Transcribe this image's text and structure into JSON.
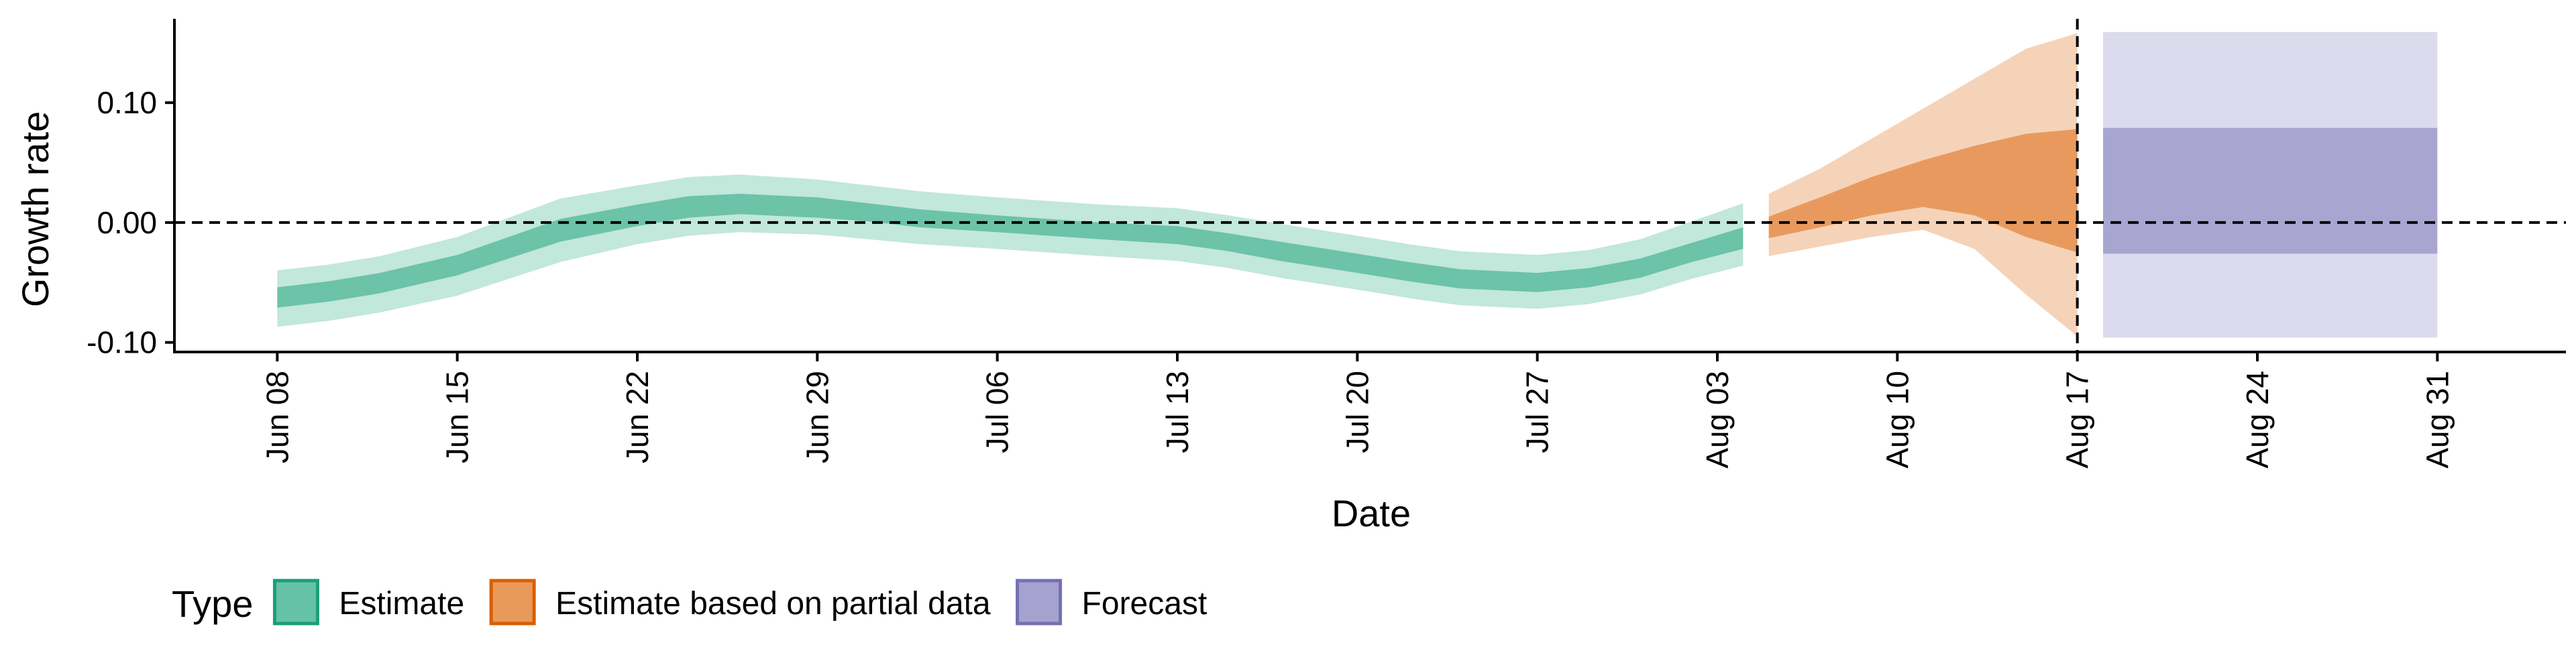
{
  "chart_data": {
    "type": "area",
    "xlabel": "Date",
    "ylabel": "Growth rate",
    "x_ticks": [
      {
        "date": "2020-06-08",
        "label": "Jun 08"
      },
      {
        "date": "2020-06-15",
        "label": "Jun 15"
      },
      {
        "date": "2020-06-22",
        "label": "Jun 22"
      },
      {
        "date": "2020-06-29",
        "label": "Jun 29"
      },
      {
        "date": "2020-07-06",
        "label": "Jul 06"
      },
      {
        "date": "2020-07-13",
        "label": "Jul 13"
      },
      {
        "date": "2020-07-20",
        "label": "Jul 20"
      },
      {
        "date": "2020-07-27",
        "label": "Jul 27"
      },
      {
        "date": "2020-08-03",
        "label": "Aug 03"
      },
      {
        "date": "2020-08-10",
        "label": "Aug 10"
      },
      {
        "date": "2020-08-17",
        "label": "Aug 17"
      },
      {
        "date": "2020-08-24",
        "label": "Aug 24"
      },
      {
        "date": "2020-08-31",
        "label": "Aug 31"
      }
    ],
    "y_ticks": [
      {
        "value": 0.1,
        "label": "0.10"
      },
      {
        "value": 0.0,
        "label": "0.00"
      },
      {
        "value": -0.1,
        "label": "-0.10"
      }
    ],
    "xlim": [
      "2020-06-04",
      "2020-09-05"
    ],
    "ylim": [
      -0.108,
      0.17
    ],
    "reference_lines": {
      "horizontal_y": 0.0,
      "vertical_date": "2020-08-17",
      "style": "dashed"
    },
    "legend": {
      "title": "Type",
      "position": "bottom-left",
      "items": [
        {
          "label": "Estimate",
          "fill": "#66c2a5",
          "border": "#1b9e77"
        },
        {
          "label": "Estimate based on partial data",
          "fill": "#e89a5a",
          "border": "#d95f02"
        },
        {
          "label": "Forecast",
          "fill": "#a6a2d0",
          "border": "#7570b3"
        }
      ]
    },
    "series": [
      {
        "name": "Estimate",
        "colors": {
          "inner": "#6cc3a7",
          "outer": "#c2e7db"
        },
        "points": [
          {
            "date": "2020-06-08",
            "lo90": -0.087,
            "lo50": -0.071,
            "hi50": -0.054,
            "hi90": -0.04
          },
          {
            "date": "2020-06-10",
            "lo90": -0.082,
            "lo50": -0.066,
            "hi50": -0.049,
            "hi90": -0.035
          },
          {
            "date": "2020-06-12",
            "lo90": -0.075,
            "lo50": -0.059,
            "hi50": -0.042,
            "hi90": -0.028
          },
          {
            "date": "2020-06-15",
            "lo90": -0.061,
            "lo50": -0.044,
            "hi50": -0.027,
            "hi90": -0.012
          },
          {
            "date": "2020-06-17",
            "lo90": -0.047,
            "lo50": -0.03,
            "hi50": -0.012,
            "hi90": 0.004
          },
          {
            "date": "2020-06-19",
            "lo90": -0.033,
            "lo50": -0.016,
            "hi50": 0.003,
            "hi90": 0.02
          },
          {
            "date": "2020-06-22",
            "lo90": -0.018,
            "lo50": -0.003,
            "hi50": 0.015,
            "hi90": 0.031
          },
          {
            "date": "2020-06-24",
            "lo90": -0.011,
            "lo50": 0.004,
            "hi50": 0.022,
            "hi90": 0.038
          },
          {
            "date": "2020-06-26",
            "lo90": -0.008,
            "lo50": 0.007,
            "hi50": 0.024,
            "hi90": 0.04
          },
          {
            "date": "2020-06-29",
            "lo90": -0.01,
            "lo50": 0.004,
            "hi50": 0.021,
            "hi90": 0.036
          },
          {
            "date": "2020-07-01",
            "lo90": -0.014,
            "lo50": 0.001,
            "hi50": 0.016,
            "hi90": 0.031
          },
          {
            "date": "2020-07-03",
            "lo90": -0.018,
            "lo50": -0.004,
            "hi50": 0.011,
            "hi90": 0.026
          },
          {
            "date": "2020-07-06",
            "lo90": -0.022,
            "lo50": -0.008,
            "hi50": 0.006,
            "hi90": 0.021
          },
          {
            "date": "2020-07-08",
            "lo90": -0.025,
            "lo50": -0.011,
            "hi50": 0.003,
            "hi90": 0.018
          },
          {
            "date": "2020-07-10",
            "lo90": -0.028,
            "lo50": -0.014,
            "hi50": 0.0,
            "hi90": 0.015
          },
          {
            "date": "2020-07-13",
            "lo90": -0.032,
            "lo50": -0.018,
            "hi50": -0.003,
            "hi90": 0.012
          },
          {
            "date": "2020-07-15",
            "lo90": -0.038,
            "lo50": -0.024,
            "hi50": -0.009,
            "hi90": 0.006
          },
          {
            "date": "2020-07-17",
            "lo90": -0.046,
            "lo50": -0.032,
            "hi50": -0.016,
            "hi90": -0.001
          },
          {
            "date": "2020-07-20",
            "lo90": -0.056,
            "lo50": -0.042,
            "hi50": -0.026,
            "hi90": -0.011
          },
          {
            "date": "2020-07-22",
            "lo90": -0.063,
            "lo50": -0.049,
            "hi50": -0.033,
            "hi90": -0.018
          },
          {
            "date": "2020-07-24",
            "lo90": -0.069,
            "lo50": -0.055,
            "hi50": -0.039,
            "hi90": -0.024
          },
          {
            "date": "2020-07-27",
            "lo90": -0.072,
            "lo50": -0.058,
            "hi50": -0.042,
            "hi90": -0.027
          },
          {
            "date": "2020-07-29",
            "lo90": -0.068,
            "lo50": -0.054,
            "hi50": -0.038,
            "hi90": -0.023
          },
          {
            "date": "2020-07-31",
            "lo90": -0.06,
            "lo50": -0.046,
            "hi50": -0.03,
            "hi90": -0.014
          },
          {
            "date": "2020-08-02",
            "lo90": -0.047,
            "lo50": -0.033,
            "hi50": -0.017,
            "hi90": 0.001
          },
          {
            "date": "2020-08-04",
            "lo90": -0.036,
            "lo50": -0.022,
            "hi50": -0.004,
            "hi90": 0.016
          }
        ]
      },
      {
        "name": "Estimate based on partial data",
        "colors": {
          "inner": "#e89a5e",
          "outer": "#f5d3b9"
        },
        "points": [
          {
            "date": "2020-08-05",
            "lo90": -0.028,
            "lo50": -0.013,
            "hi50": 0.005,
            "hi90": 0.024
          },
          {
            "date": "2020-08-07",
            "lo90": -0.02,
            "lo50": -0.004,
            "hi50": 0.021,
            "hi90": 0.045
          },
          {
            "date": "2020-08-09",
            "lo90": -0.012,
            "lo50": 0.006,
            "hi50": 0.038,
            "hi90": 0.07
          },
          {
            "date": "2020-08-11",
            "lo90": -0.006,
            "lo50": 0.013,
            "hi50": 0.052,
            "hi90": 0.095
          },
          {
            "date": "2020-08-13",
            "lo90": -0.022,
            "lo50": 0.006,
            "hi50": 0.064,
            "hi90": 0.12
          },
          {
            "date": "2020-08-15",
            "lo90": -0.06,
            "lo50": -0.012,
            "hi50": 0.074,
            "hi90": 0.145
          },
          {
            "date": "2020-08-17",
            "lo90": -0.095,
            "lo50": -0.025,
            "hi50": 0.078,
            "hi90": 0.158
          }
        ]
      },
      {
        "name": "Forecast",
        "colors": {
          "inner": "#a8a5d1",
          "outer": "#dcdbed"
        },
        "points": [
          {
            "date": "2020-08-18",
            "lo90": -0.096,
            "lo50": -0.026,
            "hi50": 0.079,
            "hi90": 0.159
          },
          {
            "date": "2020-08-31",
            "lo90": -0.096,
            "lo50": -0.026,
            "hi50": 0.079,
            "hi90": 0.159
          }
        ]
      }
    ]
  }
}
